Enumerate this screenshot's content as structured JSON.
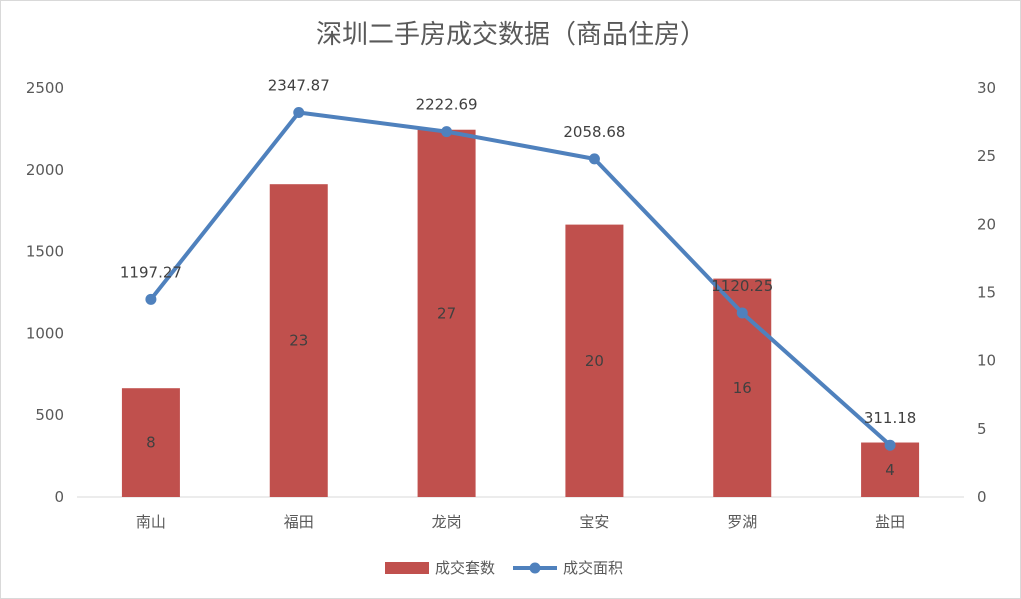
{
  "colors": {
    "bar": "#c0504d",
    "line": "#4f81bd",
    "axis": "#d9d9d9",
    "text": "#595959"
  },
  "chart_data": {
    "type": "bar+line",
    "title": "深圳二手房成交数据（商品住房）",
    "categories": [
      "南山",
      "福田",
      "龙岗",
      "宝安",
      "罗湖",
      "盐田"
    ],
    "left_axis": {
      "ylim": [
        0,
        2500
      ],
      "ticks": [
        "0",
        "500",
        "1000",
        "1500",
        "2000",
        "2500"
      ]
    },
    "right_axis": {
      "ylim": [
        0,
        30
      ],
      "ticks": [
        "0",
        "5",
        "10",
        "15",
        "20",
        "25",
        "30"
      ]
    },
    "series": [
      {
        "name": "成交套数",
        "type": "bar",
        "axis": "left",
        "values": [
          665,
          1912,
          2245,
          1665,
          1335,
          333
        ],
        "labels": [
          "8",
          "23",
          "27",
          "20",
          "16",
          "4"
        ]
      },
      {
        "name": "成交面积",
        "type": "line",
        "axis": "right",
        "values": [
          14.5,
          28.2,
          26.8,
          24.8,
          13.5,
          3.8
        ],
        "labels": [
          "1197.27",
          "2347.87",
          "2222.69",
          "2058.68",
          "1120.25",
          "311.18"
        ]
      }
    ],
    "legend": {
      "position": "bottom",
      "entries": [
        "成交套数",
        "成交面积"
      ]
    },
    "grid": false
  }
}
